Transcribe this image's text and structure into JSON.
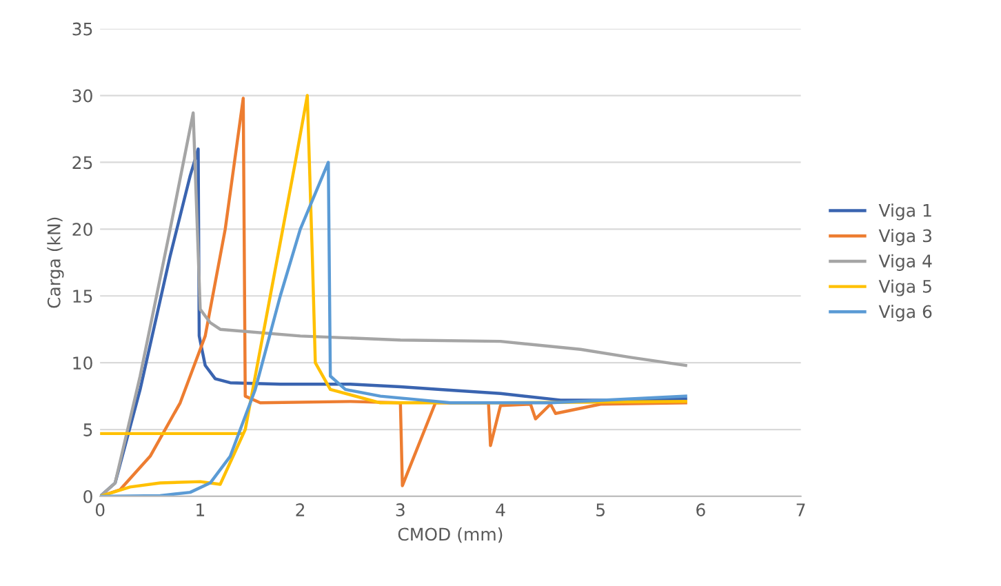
{
  "chart_data": {
    "type": "line",
    "xlabel": "CMOD (mm)",
    "ylabel": "Carga (kN)",
    "xlim": [
      0,
      7
    ],
    "xticks": [
      0,
      1,
      2,
      3,
      4,
      5,
      6,
      7
    ],
    "ylim": [
      0,
      35
    ],
    "yticks": [
      0,
      5,
      10,
      15,
      20,
      25,
      30,
      35
    ],
    "grid": "y",
    "legend": "right",
    "marker": "none",
    "line_style": "solid",
    "series": [
      {
        "name": "Viga 1",
        "color": "#3a64b0",
        "x": [
          0,
          0.15,
          0.4,
          0.7,
          0.9,
          0.98,
          0.99,
          1.05,
          1.15,
          1.3,
          1.8,
          2.5,
          3.0,
          3.4,
          4.0,
          4.6,
          5.2,
          5.85
        ],
        "values": [
          0,
          1,
          8,
          18,
          24,
          26,
          12,
          9.8,
          8.8,
          8.5,
          8.4,
          8.4,
          8.2,
          8,
          7.7,
          7.2,
          7.2,
          7.3
        ]
      },
      {
        "name": "Viga 3",
        "color": "#ed7d31",
        "x": [
          0,
          0.2,
          0.5,
          0.8,
          1.05,
          1.25,
          1.43,
          1.45,
          1.6,
          2.5,
          3.0,
          3.02,
          3.35,
          3.88,
          3.9,
          4.0,
          4.3,
          4.35,
          4.5,
          4.55,
          5.0,
          5.85
        ],
        "values": [
          0,
          0.5,
          3,
          7,
          12,
          20,
          29.8,
          7.5,
          7,
          7.1,
          7,
          0.8,
          7,
          7,
          3.8,
          6.8,
          6.9,
          5.8,
          6.9,
          6.2,
          6.9,
          7
        ]
      },
      {
        "name": "Viga 4",
        "color": "#a5a5a5",
        "x": [
          0,
          0.15,
          0.4,
          0.7,
          0.93,
          1.0,
          1.1,
          1.2,
          2.0,
          3.0,
          4.0,
          4.8,
          5.3,
          5.85
        ],
        "values": [
          0,
          1,
          9,
          20,
          28.7,
          14,
          13,
          12.5,
          12,
          11.7,
          11.6,
          11,
          10.4,
          9.8
        ]
      },
      {
        "name": "Viga 5",
        "color": "#ffc000",
        "x": [
          0,
          1.42,
          null,
          0,
          0.3,
          0.6,
          1.0,
          1.2,
          1.45,
          1.7,
          1.95,
          2.07,
          2.12,
          2.15,
          2.3,
          2.8,
          4.0,
          5.85
        ],
        "values": [
          4.7,
          4.7,
          null,
          0,
          0.7,
          1,
          1.1,
          0.9,
          5,
          15,
          25,
          30,
          18,
          10,
          8,
          7,
          7,
          7.1
        ]
      },
      {
        "name": "Viga 6",
        "color": "#5b9bd5",
        "x": [
          0,
          0.6,
          0.9,
          1.1,
          1.3,
          1.55,
          1.8,
          2.0,
          2.28,
          2.3,
          2.45,
          2.8,
          3.5,
          4.5,
          5.85
        ],
        "values": [
          0,
          0.05,
          0.3,
          1,
          3,
          8,
          15,
          20,
          25,
          9,
          8,
          7.5,
          7,
          7,
          7.5
        ]
      }
    ]
  }
}
